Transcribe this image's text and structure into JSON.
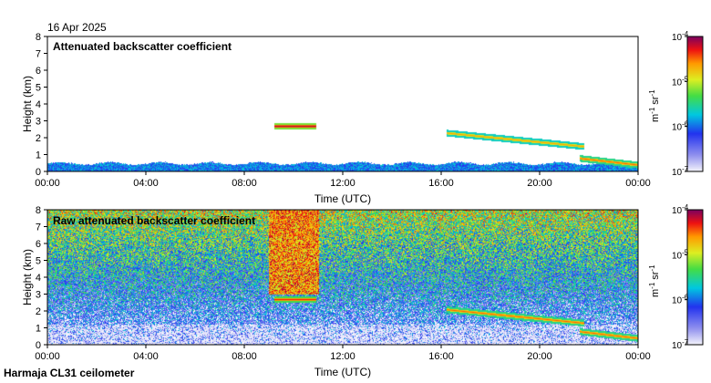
{
  "date": "16 Apr 2025",
  "footer": "Harmaja CL31 ceilometer",
  "chart_data": [
    {
      "type": "heatmap",
      "title": "Attenuated backscatter coefficient",
      "xlabel": "Time (UTC)",
      "ylabel": "Height (km)",
      "xlim": [
        0,
        24
      ],
      "ylim": [
        0,
        8
      ],
      "x_ticks": [
        "00:00",
        "04:00",
        "08:00",
        "12:00",
        "16:00",
        "20:00",
        "00:00"
      ],
      "y_ticks": [
        "0",
        "1",
        "2",
        "3",
        "4",
        "5",
        "6",
        "7",
        "8"
      ],
      "colorbar": {
        "scale": "log",
        "range": [
          1e-07,
          0.0001
        ],
        "labels": [
          "10",
          "10",
          "10",
          "10"
        ],
        "exponents": [
          "-7",
          "-6",
          "-5",
          "-4"
        ],
        "unit_base": "m",
        "unit_exp1": "-1",
        "unit_mid": "sr",
        "unit_exp2": "-1"
      },
      "features": [
        {
          "name": "boundary layer",
          "t_start": 0,
          "t_end": 24,
          "top_km": 0.5,
          "level": 0.35
        },
        {
          "name": "cloud layer 1",
          "t_start": 9.2,
          "t_end": 10.9,
          "height_km": 2.7,
          "level": 0.95
        },
        {
          "name": "cloud layer 2",
          "t_start": 16.2,
          "t_end": 21.8,
          "height_km_start": 2.3,
          "height_km_end": 1.5,
          "level": 0.8
        },
        {
          "name": "low cloud",
          "t_start": 21.6,
          "t_end": 24,
          "height_km_start": 0.8,
          "height_km_end": 0.4,
          "level": 0.85
        }
      ]
    },
    {
      "type": "heatmap",
      "title": "Raw attenuated backscatter coefficient",
      "xlabel": "Time (UTC)",
      "ylabel": "Height (km)",
      "xlim": [
        0,
        24
      ],
      "ylim": [
        0,
        8
      ],
      "x_ticks": [
        "00:00",
        "04:00",
        "08:00",
        "12:00",
        "16:00",
        "20:00",
        "00:00"
      ],
      "y_ticks": [
        "0",
        "1",
        "2",
        "3",
        "4",
        "5",
        "6",
        "7",
        "8"
      ],
      "colorbar": {
        "scale": "log",
        "range": [
          1e-07,
          0.0001
        ],
        "labels": [
          "10",
          "10",
          "10",
          "10"
        ],
        "exponents": [
          "-7",
          "-6",
          "-5",
          "-4"
        ],
        "unit_base": "m",
        "unit_exp1": "-1",
        "unit_mid": "sr",
        "unit_exp2": "-1"
      },
      "features": [
        {
          "name": "noise background",
          "description": "noise level rising with height",
          "level_at_0km": 0.1,
          "level_at_8km": 0.65
        },
        {
          "name": "enhanced noise band",
          "t_start": 9.0,
          "t_end": 11.0,
          "level": 0.8
        },
        {
          "name": "cloud layer 1",
          "t_start": 9.2,
          "t_end": 10.9,
          "height_km": 2.7,
          "level": 0.9
        },
        {
          "name": "cloud layer 2",
          "t_start": 16.2,
          "t_end": 21.8,
          "height_km_start": 2.1,
          "height_km_end": 1.3,
          "level": 0.85
        },
        {
          "name": "low cloud",
          "t_start": 21.6,
          "t_end": 24,
          "height_km_start": 0.8,
          "height_km_end": 0.4,
          "level": 0.85
        }
      ]
    }
  ]
}
